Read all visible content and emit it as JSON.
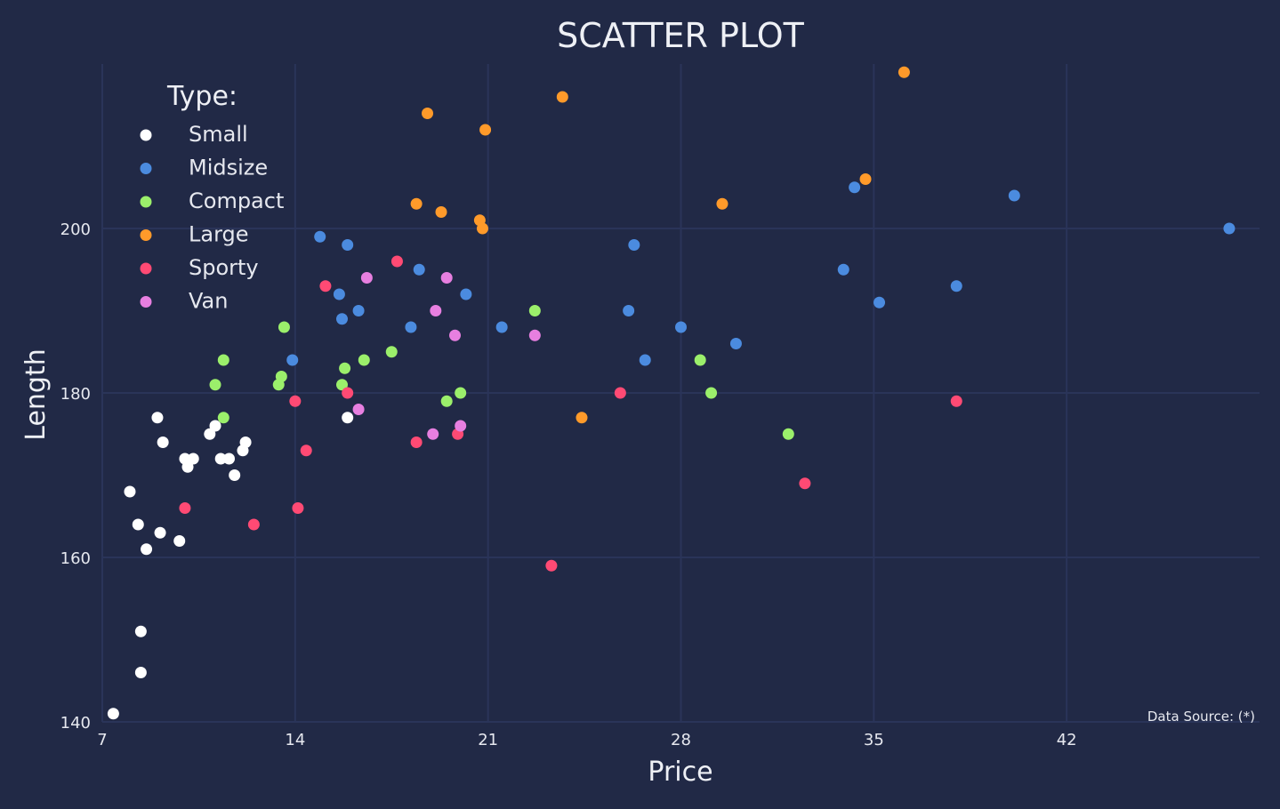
{
  "chart_data": {
    "type": "scatter",
    "title": "SCATTER PLOT",
    "xlabel": "Price",
    "ylabel": "Length",
    "xlim": [
      7,
      49
    ],
    "ylim": [
      140,
      220
    ],
    "xticks": [
      7,
      14,
      21,
      28,
      35,
      42
    ],
    "yticks": [
      140,
      160,
      180,
      200
    ],
    "grid": true,
    "legend": {
      "title": "Type:",
      "placement": "top-left"
    },
    "annotation": "Data Source: (*)",
    "colors": {
      "background": "#212946",
      "grid": "#2A3459",
      "text": "#E6E8EF"
    },
    "series": [
      {
        "name": "Small",
        "color": "#FFFFFF",
        "points": [
          {
            "x": 7.4,
            "y": 141
          },
          {
            "x": 8.0,
            "y": 168
          },
          {
            "x": 8.3,
            "y": 164
          },
          {
            "x": 8.4,
            "y": 151
          },
          {
            "x": 8.4,
            "y": 146
          },
          {
            "x": 8.6,
            "y": 161
          },
          {
            "x": 9.0,
            "y": 177
          },
          {
            "x": 9.1,
            "y": 163
          },
          {
            "x": 9.2,
            "y": 174
          },
          {
            "x": 9.8,
            "y": 162
          },
          {
            "x": 10.0,
            "y": 172
          },
          {
            "x": 10.1,
            "y": 171
          },
          {
            "x": 10.3,
            "y": 172
          },
          {
            "x": 10.9,
            "y": 175
          },
          {
            "x": 11.1,
            "y": 176
          },
          {
            "x": 11.3,
            "y": 172
          },
          {
            "x": 11.6,
            "y": 172
          },
          {
            "x": 11.8,
            "y": 170
          },
          {
            "x": 12.1,
            "y": 173
          },
          {
            "x": 12.2,
            "y": 174
          },
          {
            "x": 15.9,
            "y": 177
          }
        ]
      },
      {
        "name": "Midsize",
        "color": "#4B8BDF",
        "points": [
          {
            "x": 13.9,
            "y": 184
          },
          {
            "x": 14.9,
            "y": 199
          },
          {
            "x": 15.6,
            "y": 192
          },
          {
            "x": 15.7,
            "y": 189
          },
          {
            "x": 15.9,
            "y": 198
          },
          {
            "x": 16.3,
            "y": 190
          },
          {
            "x": 18.2,
            "y": 188
          },
          {
            "x": 18.5,
            "y": 195
          },
          {
            "x": 20.2,
            "y": 192
          },
          {
            "x": 21.5,
            "y": 188
          },
          {
            "x": 26.1,
            "y": 190
          },
          {
            "x": 26.3,
            "y": 198
          },
          {
            "x": 26.7,
            "y": 184
          },
          {
            "x": 28.0,
            "y": 188
          },
          {
            "x": 30.0,
            "y": 186
          },
          {
            "x": 33.9,
            "y": 195
          },
          {
            "x": 34.3,
            "y": 205
          },
          {
            "x": 35.2,
            "y": 191
          },
          {
            "x": 38.0,
            "y": 193
          },
          {
            "x": 40.1,
            "y": 204
          },
          {
            "x": 47.9,
            "y": 200
          }
        ]
      },
      {
        "name": "Compact",
        "color": "#9BEF6B",
        "points": [
          {
            "x": 11.1,
            "y": 181
          },
          {
            "x": 11.4,
            "y": 177
          },
          {
            "x": 11.4,
            "y": 184
          },
          {
            "x": 13.4,
            "y": 181
          },
          {
            "x": 13.5,
            "y": 182
          },
          {
            "x": 13.6,
            "y": 188
          },
          {
            "x": 15.7,
            "y": 181
          },
          {
            "x": 15.8,
            "y": 183
          },
          {
            "x": 16.5,
            "y": 184
          },
          {
            "x": 17.5,
            "y": 185
          },
          {
            "x": 19.5,
            "y": 179
          },
          {
            "x": 20.0,
            "y": 180
          },
          {
            "x": 22.7,
            "y": 190
          },
          {
            "x": 28.7,
            "y": 184
          },
          {
            "x": 29.1,
            "y": 180
          },
          {
            "x": 31.9,
            "y": 175
          }
        ]
      },
      {
        "name": "Large",
        "color": "#FF9A2A",
        "points": [
          {
            "x": 18.4,
            "y": 203
          },
          {
            "x": 18.8,
            "y": 214
          },
          {
            "x": 19.3,
            "y": 202
          },
          {
            "x": 20.7,
            "y": 201
          },
          {
            "x": 20.8,
            "y": 200
          },
          {
            "x": 20.9,
            "y": 212
          },
          {
            "x": 23.7,
            "y": 216
          },
          {
            "x": 24.4,
            "y": 177
          },
          {
            "x": 29.5,
            "y": 203
          },
          {
            "x": 34.7,
            "y": 206
          },
          {
            "x": 36.1,
            "y": 219
          }
        ]
      },
      {
        "name": "Sporty",
        "color": "#FF4A74",
        "points": [
          {
            "x": 10.0,
            "y": 166
          },
          {
            "x": 12.5,
            "y": 164
          },
          {
            "x": 14.0,
            "y": 179
          },
          {
            "x": 14.1,
            "y": 166
          },
          {
            "x": 14.4,
            "y": 173
          },
          {
            "x": 15.1,
            "y": 193
          },
          {
            "x": 15.9,
            "y": 180
          },
          {
            "x": 17.7,
            "y": 196
          },
          {
            "x": 18.4,
            "y": 174
          },
          {
            "x": 19.9,
            "y": 175
          },
          {
            "x": 23.3,
            "y": 159
          },
          {
            "x": 25.8,
            "y": 180
          },
          {
            "x": 32.5,
            "y": 169
          },
          {
            "x": 38.0,
            "y": 179
          }
        ]
      },
      {
        "name": "Van",
        "color": "#E77FE0",
        "points": [
          {
            "x": 16.3,
            "y": 178
          },
          {
            "x": 16.6,
            "y": 194
          },
          {
            "x": 19.0,
            "y": 175
          },
          {
            "x": 19.1,
            "y": 190
          },
          {
            "x": 19.5,
            "y": 194
          },
          {
            "x": 19.8,
            "y": 187
          },
          {
            "x": 20.0,
            "y": 176
          },
          {
            "x": 22.7,
            "y": 187
          }
        ]
      }
    ]
  }
}
